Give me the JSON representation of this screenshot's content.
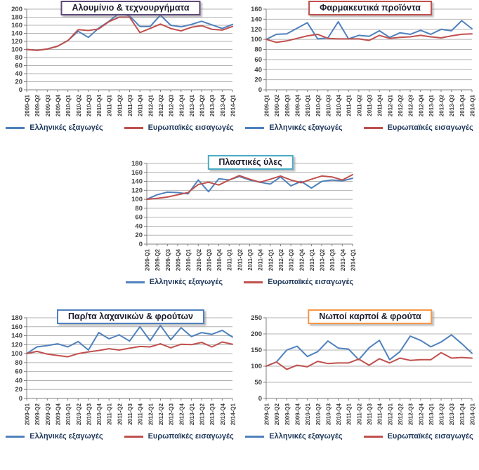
{
  "colors": {
    "grid": "#b3b3b3",
    "axis_line": "#808080",
    "axis_text": "#404040",
    "export_line": "#4F81BD",
    "import_line": "#C0504D"
  },
  "chart_data": [
    {
      "type": "line",
      "title": "Αλουμίνιο & τεχνουργήματα",
      "title_border_color": "#604A7B",
      "ylim": [
        0,
        200
      ],
      "ystep": 20,
      "grid": true,
      "legend_position": "bottom",
      "categories": [
        "2009-Q1",
        "2009-Q2",
        "2009-Q3",
        "2009-Q4",
        "2010-Q1",
        "2010-Q2",
        "2010-Q3",
        "2010-Q4",
        "2011-Q1",
        "2011-Q2",
        "2011-Q3",
        "2011-Q4",
        "2012-Q1",
        "2012-Q2",
        "2012-Q3",
        "2012-Q4",
        "2013-Q1",
        "2013-Q2",
        "2013-Q3",
        "2013-Q4",
        "2014-Q1"
      ],
      "series": [
        {
          "name": "Ελληνικές εξαγωγές",
          "color": "#4F81BD",
          "values": [
            100,
            98,
            101,
            108,
            122,
            145,
            130,
            153,
            170,
            190,
            183,
            157,
            157,
            185,
            160,
            156,
            162,
            170,
            161,
            152,
            162
          ]
        },
        {
          "name": "Ευρωπαϊκές εισαγωγές",
          "color": "#C0504D",
          "values": [
            100,
            98,
            101,
            108,
            122,
            149,
            147,
            151,
            169,
            180,
            180,
            142,
            152,
            163,
            152,
            146,
            155,
            159,
            150,
            148,
            157
          ]
        }
      ]
    },
    {
      "type": "line",
      "title": "Φαρμακευτικά προϊόντα",
      "title_border_color": "#C0504D",
      "ylim": [
        0,
        160
      ],
      "ystep": 20,
      "grid": true,
      "legend_position": "bottom",
      "categories": [
        "2009-Q1",
        "2009-Q2",
        "2009-Q3",
        "2009-Q4",
        "2010-Q1",
        "2010-Q2",
        "2010-Q3",
        "2010-Q4",
        "2011-Q1",
        "2011-Q2",
        "2011-Q3",
        "2011-Q4",
        "2012-Q1",
        "2012-Q2",
        "2012-Q3",
        "2012-Q4",
        "2013-Q1",
        "2013-Q2",
        "2013-Q3",
        "2013-Q4",
        "2014-Q1"
      ],
      "series": [
        {
          "name": "Ελληνικές εξαγωγές",
          "color": "#4F81BD",
          "values": [
            100,
            110,
            111,
            122,
            133,
            101,
            103,
            135,
            101,
            108,
            106,
            117,
            104,
            113,
            110,
            118,
            110,
            120,
            117,
            137,
            121
          ]
        },
        {
          "name": "Ευρωπαϊκές εισαγωγές",
          "color": "#C0504D",
          "values": [
            100,
            94,
            97,
            102,
            107,
            110,
            102,
            101,
            101,
            101,
            98,
            108,
            102,
            104,
            105,
            108,
            105,
            103,
            107,
            110,
            111
          ]
        }
      ]
    },
    {
      "type": "line",
      "title": "Πλαστικές ύλες",
      "title_border_color": "#4BACC6",
      "ylim": [
        0,
        180
      ],
      "ystep": 20,
      "grid": true,
      "legend_position": "bottom",
      "categories": [
        "2009-Q1",
        "2009-Q2",
        "2009-Q3",
        "2009-Q4",
        "2010-Q1",
        "2010-Q2",
        "2010-Q3",
        "2010-Q4",
        "2011-Q1",
        "2011-Q2",
        "2011-Q3",
        "2011-Q4",
        "2012-Q1",
        "2012-Q2",
        "2012-Q3",
        "2012-Q4",
        "2013-Q1",
        "2013-Q2",
        "2013-Q3",
        "2013-Q4",
        "2014-Q1"
      ],
      "series": [
        {
          "name": "Ελληνικές εξαγωγές",
          "color": "#4F81BD",
          "values": [
            100,
            110,
            116,
            115,
            112,
            143,
            117,
            146,
            143,
            151,
            143,
            138,
            134,
            150,
            130,
            140,
            125,
            140,
            143,
            141,
            147
          ]
        },
        {
          "name": "Ευρωπαϊκές εισαγωγές",
          "color": "#C0504D",
          "values": [
            100,
            102,
            105,
            110,
            115,
            133,
            138,
            132,
            143,
            153,
            145,
            138,
            145,
            152,
            143,
            137,
            145,
            152,
            150,
            143,
            155
          ]
        }
      ]
    },
    {
      "type": "line",
      "title": "Παρ/τα λαχανικών & φρούτων",
      "title_border_color": "#4F81BD",
      "ylim": [
        0,
        180
      ],
      "ystep": 20,
      "grid": true,
      "legend_position": "bottom",
      "categories": [
        "2009-Q1",
        "2009-Q2",
        "2009-Q3",
        "2009-Q4",
        "2010-Q1",
        "2010-Q2",
        "2010-Q3",
        "2010-Q4",
        "2011-Q1",
        "2011-Q2",
        "2011-Q3",
        "2011-Q4",
        "2012-Q1",
        "2012-Q2",
        "2012-Q3",
        "2012-Q4",
        "2013-Q1",
        "2013-Q2",
        "2013-Q3",
        "2013-Q4",
        "2014-Q1"
      ],
      "series": [
        {
          "name": "Ελληνικές εξαγωγές",
          "color": "#4F81BD",
          "values": [
            100,
            115,
            118,
            122,
            115,
            127,
            108,
            147,
            133,
            142,
            128,
            160,
            129,
            163,
            131,
            158,
            138,
            147,
            143,
            152,
            137
          ]
        },
        {
          "name": "Ευρωπαϊκές εισαγωγές",
          "color": "#C0504D",
          "values": [
            100,
            105,
            99,
            96,
            93,
            100,
            104,
            107,
            111,
            108,
            112,
            116,
            115,
            122,
            113,
            121,
            120,
            125,
            115,
            126,
            121
          ]
        }
      ]
    },
    {
      "type": "line",
      "title": "Νωποί καρποί & φρούτα",
      "title_border_color": "#F79646",
      "ylim": [
        0,
        250
      ],
      "ystep": 50,
      "grid": true,
      "legend_position": "bottom",
      "categories": [
        "2009-Q1",
        "2009-Q2",
        "2009-Q3",
        "2009-Q4",
        "2010-Q1",
        "2010-Q2",
        "2010-Q3",
        "2010-Q4",
        "2011-Q1",
        "2011-Q2",
        "2011-Q3",
        "2011-Q4",
        "2012-Q1",
        "2012-Q2",
        "2012-Q3",
        "2012-Q4",
        "2013-Q1",
        "2013-Q2",
        "2013-Q3",
        "2013-Q4",
        "2014-Q1"
      ],
      "series": [
        {
          "name": "Ελληνικές εξαγωγές",
          "color": "#4F81BD",
          "values": [
            100,
            113,
            150,
            162,
            130,
            145,
            178,
            156,
            153,
            120,
            157,
            180,
            120,
            145,
            193,
            180,
            160,
            175,
            197,
            170,
            140
          ]
        },
        {
          "name": "Ευρωπαϊκές εισαγωγές",
          "color": "#C0504D",
          "values": [
            100,
            113,
            90,
            103,
            98,
            115,
            108,
            110,
            110,
            122,
            103,
            123,
            110,
            125,
            118,
            120,
            120,
            142,
            125,
            127,
            125
          ]
        }
      ]
    }
  ]
}
